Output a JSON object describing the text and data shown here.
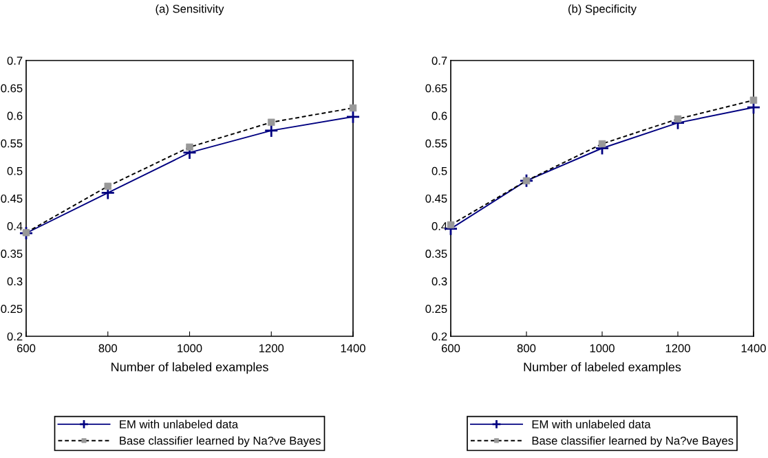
{
  "chart_data": [
    {
      "type": "line",
      "title": "(a) Sensitivity",
      "xlabel": "Number of labeled examples",
      "x": [
        600,
        800,
        1000,
        1200,
        1400
      ],
      "xlim": [
        600,
        1400
      ],
      "xticks": [
        600,
        800,
        1000,
        1200,
        1400
      ],
      "ylim": [
        0.2,
        0.7
      ],
      "yticks": [
        0.2,
        0.25,
        0.3,
        0.35,
        0.4,
        0.45,
        0.5,
        0.55,
        0.6,
        0.65,
        0.7
      ],
      "grid": false,
      "legend": "bottom",
      "series": [
        {
          "name": "EM with unlabeled data",
          "color": "#000080",
          "marker": "cross",
          "line_style": "solid",
          "values": [
            0.387,
            0.46,
            0.533,
            0.573,
            0.598
          ]
        },
        {
          "name": "Base classifier learned by Na?ve Bayes",
          "color": "#000000",
          "marker": "square",
          "line_style": "dashed",
          "values": [
            0.388,
            0.472,
            0.543,
            0.588,
            0.614
          ]
        }
      ]
    },
    {
      "type": "line",
      "title": "(b) Specificity",
      "xlabel": "Number of labeled examples",
      "x": [
        600,
        800,
        1000,
        1200,
        1400
      ],
      "xlim": [
        600,
        1400
      ],
      "xticks": [
        600,
        800,
        1000,
        1200,
        1400
      ],
      "ylim": [
        0.2,
        0.7
      ],
      "yticks": [
        0.2,
        0.25,
        0.3,
        0.35,
        0.4,
        0.45,
        0.5,
        0.55,
        0.6,
        0.65,
        0.7
      ],
      "grid": false,
      "legend": "bottom",
      "series": [
        {
          "name": "EM with unlabeled data",
          "color": "#000080",
          "marker": "cross",
          "line_style": "solid",
          "values": [
            0.395,
            0.482,
            0.541,
            0.587,
            0.615
          ]
        },
        {
          "name": "Base classifier learned by Na?ve Bayes",
          "color": "#000000",
          "marker": "square",
          "line_style": "dashed",
          "values": [
            0.402,
            0.482,
            0.549,
            0.594,
            0.628
          ]
        }
      ]
    }
  ]
}
